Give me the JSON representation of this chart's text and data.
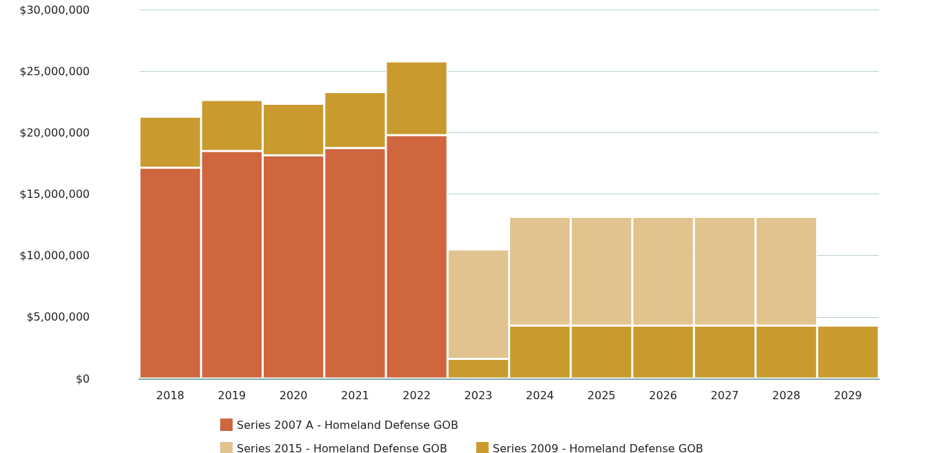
{
  "chart_data": {
    "type": "bar",
    "stacked": true,
    "categories": [
      "2018",
      "2019",
      "2020",
      "2021",
      "2022",
      "2023",
      "2024",
      "2025",
      "2026",
      "2027",
      "2028",
      "2029"
    ],
    "series": [
      {
        "name": "Series 2007 A - Homeland Defense GOB",
        "color": "#cf663e",
        "values": [
          17150000,
          18500000,
          18150000,
          18750000,
          19800000,
          null,
          null,
          null,
          null,
          null,
          null,
          null
        ]
      },
      {
        "name": "Series 2009 - Homeland Defense GOB",
        "color": "#c99b2f",
        "values": [
          4150000,
          4150000,
          4200000,
          4550000,
          6000000,
          1600000,
          4300000,
          4300000,
          4300000,
          4300000,
          4300000,
          4300000
        ]
      },
      {
        "name": "Series 2015 - Homeland Defense GOB",
        "color": "#e1c38f",
        "values": [
          null,
          null,
          null,
          null,
          null,
          8900000,
          8850000,
          8850000,
          8850000,
          8850000,
          8850000,
          null
        ]
      }
    ],
    "ylim": [
      0,
      30000000
    ],
    "yticks": [
      {
        "value": 0,
        "label": "$0"
      },
      {
        "value": 5000000,
        "label": "$5,000,000"
      },
      {
        "value": 10000000,
        "label": "$10,000,000"
      },
      {
        "value": 15000000,
        "label": "$15,000,000"
      },
      {
        "value": 20000000,
        "label": "$20,000,000"
      },
      {
        "value": 25000000,
        "label": "$25,000,000"
      },
      {
        "value": 30000000,
        "label": "$30,000,000"
      }
    ],
    "grid": "y",
    "legend": "bottom"
  }
}
